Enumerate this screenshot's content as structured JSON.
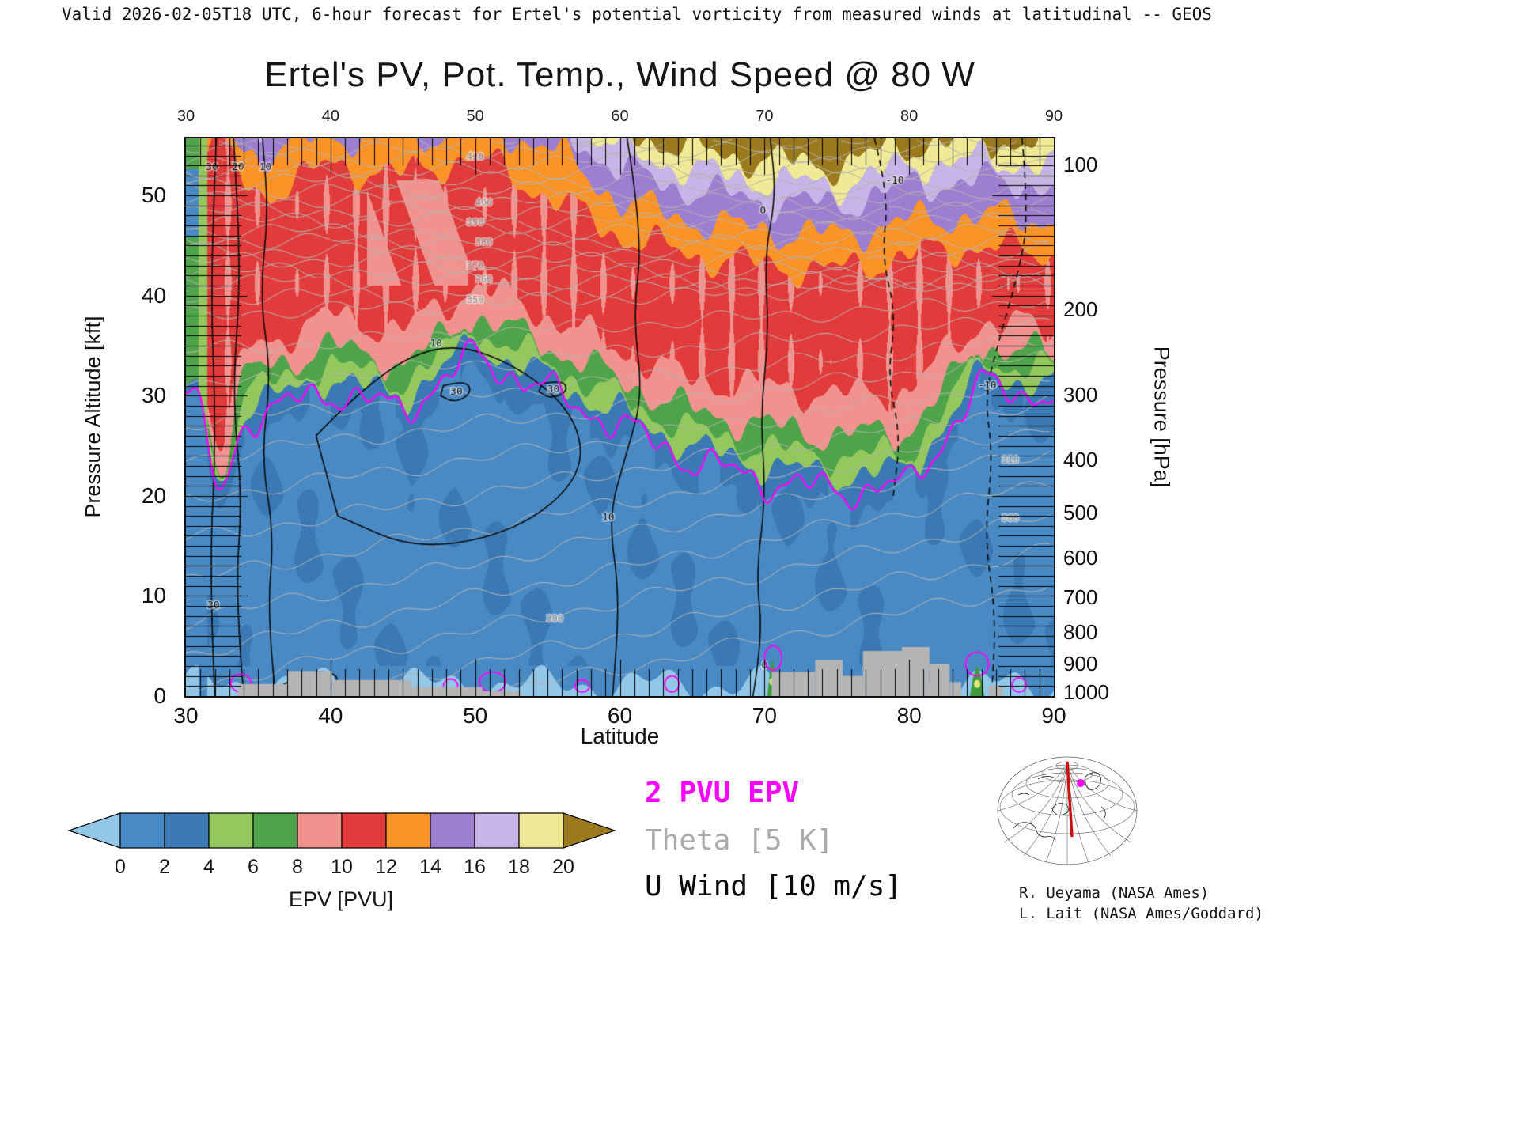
{
  "header": {
    "valid_line": "Valid 2026-02-05T18 UTC, 6-hour forecast for Ertel's potential vorticity from measured winds at latitudinal -- GEOS"
  },
  "title": "Ertel's PV, Pot. Temp., Wind Speed @ 80 W",
  "axes": {
    "x": {
      "label": "Latitude",
      "min": 30,
      "max": 90,
      "ticks": [
        30,
        40,
        50,
        60,
        70,
        80,
        90
      ]
    },
    "y_left": {
      "label": "Pressure Altitude [kft]",
      "min": 0,
      "max": 55.7,
      "ticks": [
        0,
        10,
        20,
        30,
        40,
        50
      ]
    },
    "y_right": {
      "label": "Pressure [hPa]",
      "ticks": [
        100,
        200,
        300,
        400,
        500,
        600,
        700,
        800,
        900,
        1000
      ],
      "tick_altitudes_kft": [
        53.1,
        38.6,
        30.1,
        23.6,
        18.3,
        13.8,
        9.9,
        6.4,
        3.2,
        0.4
      ]
    }
  },
  "colorbar": {
    "caption": "EPV [PVU]",
    "tick_labels": [
      0,
      2,
      4,
      6,
      8,
      10,
      12,
      14,
      16,
      18,
      20
    ],
    "under_color": "#93C7E8",
    "segment_colors": [
      "#4A8AC4",
      "#3B79B5",
      "#94C75E",
      "#4FA34A",
      "#F0938F",
      "#E23B3B",
      "#FB9327",
      "#9C7FD0",
      "#C6B5E6",
      "#F0EA96"
    ],
    "over_color": "#9A7A1C"
  },
  "legend": {
    "items": [
      {
        "label": "2 PVU EPV",
        "color": "#FF00FF",
        "bold": true
      },
      {
        "label": "Theta [5 K]",
        "color": "#ABABAB",
        "bold": false
      },
      {
        "label": "U Wind [10 m/s]",
        "color": "#0A0A0A",
        "bold": false
      }
    ]
  },
  "credits": {
    "line1": "R. Ueyama (NASA Ames)",
    "line2": "L. Lait (NASA Ames/Goddard)"
  },
  "chart_data": {
    "type": "heatmap",
    "description": "Latitude-height cross section at 80 W of Ertel's potential vorticity (filled contours, PVU) with potential temperature (gray, 5 K interval), zonal wind (black, 10 m/s interval, negative dashed) and the 2 PVU dynamical tropopause (magenta). GEOS 6-hour forecast valid 2026-02-05T18 UTC.",
    "x": {
      "name": "Latitude",
      "units": "deg N",
      "min": 30,
      "max": 90
    },
    "y": {
      "name": "Pressure Altitude",
      "units": "kft",
      "min": 0,
      "max": 55.7
    },
    "fill_levels_pvu": [
      0,
      2,
      4,
      6,
      8,
      10,
      12,
      14,
      16,
      18,
      20
    ],
    "grid_lats": [
      30,
      35,
      40,
      45,
      50,
      55,
      60,
      65,
      70,
      75,
      80,
      85,
      90
    ],
    "pv_level_altitudes_kft": {
      "2": [
        30.5,
        28.0,
        30.5,
        28.5,
        34.0,
        30.5,
        27.0,
        23.5,
        21.5,
        20.5,
        21.0,
        31.0,
        30.0
      ],
      "8": [
        35.0,
        32.5,
        35.0,
        33.0,
        38.0,
        35.0,
        31.5,
        28.5,
        27.0,
        26.0,
        26.5,
        35.0,
        34.0
      ],
      "10": [
        37.5,
        35.0,
        38.0,
        36.5,
        41.0,
        38.0,
        34.5,
        31.5,
        31.0,
        30.0,
        30.5,
        37.5,
        36.5
      ],
      "12": [
        55.0,
        50.0,
        53.0,
        52.0,
        54.0,
        50.0,
        46.0,
        44.0,
        43.0,
        42.5,
        44.0,
        45.0,
        44.0
      ],
      "14": [
        58.0,
        54.0,
        56.0,
        55.5,
        57.0,
        55.0,
        49.5,
        47.5,
        46.5,
        46.0,
        47.5,
        48.0,
        47.5
      ],
      "16": [
        61.0,
        57.0,
        59.0,
        58.5,
        60.0,
        57.5,
        52.5,
        50.5,
        49.5,
        49.0,
        51.0,
        51.5,
        51.0
      ],
      "18": [
        63.0,
        59.0,
        61.0,
        60.5,
        62.0,
        59.0,
        54.5,
        52.5,
        51.5,
        51.0,
        53.0,
        53.5,
        53.0
      ],
      "20": [
        65.0,
        61.0,
        63.0,
        62.5,
        64.0,
        61.0,
        56.5,
        54.5,
        53.5,
        53.0,
        55.0,
        55.5,
        55.0
      ]
    },
    "tropopause_fold": {
      "center_lat": 32.4,
      "width_lat": 0.8,
      "depth_kft": 9.0
    },
    "theta": {
      "interval_K": 5,
      "min_K": 290,
      "max_K": 430,
      "profile_z_of_theta": [
        [
          290,
          1.33
        ],
        [
          330,
          28.0
        ],
        [
          350,
          39.5
        ],
        [
          432,
          55.9
        ]
      ],
      "tilt": {
        "max_kft": 10,
        "zero_above_theta": 360,
        "ref_lat": 55,
        "span_lat": 35
      },
      "labels": [
        {
          "value": 350,
          "lat": 50.0
        },
        {
          "value": 360,
          "lat": 50.6
        },
        {
          "value": 370,
          "lat": 50.0
        },
        {
          "value": 380,
          "lat": 50.6
        },
        {
          "value": 390,
          "lat": 50.0
        },
        {
          "value": 400,
          "lat": 50.6
        },
        {
          "value": 420,
          "lat": 50.0
        },
        {
          "value": 300,
          "lat": 55.5
        },
        {
          "value": 300,
          "lat": 87.0
        },
        {
          "value": 310,
          "lat": 87.0
        }
      ]
    },
    "wind_contours": [
      {
        "value": 10,
        "style": "solid",
        "closed": false,
        "points": [
          [
            36.2,
            0
          ],
          [
            35.6,
            8
          ],
          [
            36.1,
            16
          ],
          [
            35.2,
            24
          ],
          [
            35.9,
            32
          ],
          [
            35.1,
            40
          ],
          [
            35.7,
            48
          ],
          [
            35.3,
            55.7
          ]
        ],
        "labels": [
          [
            35.5,
            52.8
          ]
        ]
      },
      {
        "value": 20,
        "style": "solid",
        "closed": false,
        "points": [
          [
            34.0,
            0
          ],
          [
            33.4,
            10
          ],
          [
            33.9,
            20
          ],
          [
            33.2,
            30
          ],
          [
            33.8,
            42
          ],
          [
            33.3,
            55.7
          ]
        ],
        "labels": [
          [
            33.6,
            52.8
          ]
        ]
      },
      {
        "value": 30,
        "style": "solid",
        "closed": false,
        "points": [
          [
            32.0,
            0
          ],
          [
            31.6,
            12
          ],
          [
            32.1,
            26
          ],
          [
            31.7,
            40
          ],
          [
            32.1,
            55.7
          ]
        ],
        "labels": [
          [
            31.8,
            52.8
          ],
          [
            31.9,
            9.0
          ]
        ]
      },
      {
        "value": 10,
        "style": "solid",
        "closed": true,
        "points": [
          [
            39,
            26
          ],
          [
            43,
            32
          ],
          [
            48,
            35.5
          ],
          [
            53,
            33
          ],
          [
            57,
            28
          ],
          [
            57.5,
            22
          ],
          [
            53,
            16.5
          ],
          [
            46,
            14.5
          ],
          [
            40.5,
            18
          ]
        ],
        "labels": [
          [
            47.3,
            35.2
          ]
        ]
      },
      {
        "value": 30,
        "style": "solid",
        "closed": true,
        "points": [
          [
            47.8,
            31
          ],
          [
            49.3,
            31.6
          ],
          [
            49.8,
            30.3
          ],
          [
            48.6,
            29.3
          ],
          [
            47.6,
            30.0
          ]
        ],
        "labels": [
          [
            48.7,
            30.4
          ]
        ]
      },
      {
        "value": 30,
        "style": "solid",
        "closed": true,
        "points": [
          [
            54.6,
            31.2
          ],
          [
            56.1,
            31.6
          ],
          [
            56.4,
            30.4
          ],
          [
            55.2,
            29.7
          ],
          [
            54.4,
            30.4
          ]
        ],
        "labels": [
          [
            55.4,
            30.6
          ]
        ]
      },
      {
        "value": 10,
        "style": "solid",
        "closed": false,
        "points": [
          [
            60.5,
            55.7
          ],
          [
            61.6,
            46
          ],
          [
            60.9,
            38
          ],
          [
            61.6,
            30
          ],
          [
            60.4,
            24
          ],
          [
            59.2,
            17.8
          ],
          [
            60.0,
            10
          ],
          [
            59.5,
            0
          ]
        ],
        "labels": [
          [
            59.2,
            17.8
          ]
        ]
      },
      {
        "value": 0,
        "style": "solid",
        "closed": false,
        "points": [
          [
            69.2,
            0
          ],
          [
            69.9,
            6
          ],
          [
            69.4,
            12
          ],
          [
            70.1,
            20
          ],
          [
            69.7,
            28
          ],
          [
            70.3,
            36
          ],
          [
            70.0,
            44
          ],
          [
            70.8,
            50
          ],
          [
            70.4,
            55.7
          ]
        ],
        "labels": [
          [
            70.0,
            3.0
          ],
          [
            69.9,
            48.5
          ]
        ]
      },
      {
        "value": "",
        "style": "solid",
        "closed": true,
        "points": [
          [
            36.8,
            1.2
          ],
          [
            38.5,
            2.6
          ],
          [
            40.6,
            2.2
          ],
          [
            40.2,
            0.8
          ],
          [
            38.0,
            0.3
          ]
        ],
        "labels": []
      },
      {
        "value": -10,
        "style": "dashed",
        "closed": false,
        "points": [
          [
            77.6,
            55.7
          ],
          [
            78.6,
            50
          ],
          [
            78.1,
            44
          ],
          [
            79.1,
            38
          ],
          [
            78.5,
            32
          ],
          [
            79.4,
            26
          ],
          [
            78.9,
            20
          ]
        ],
        "labels": [
          [
            79.0,
            51.5
          ]
        ]
      },
      {
        "value": -10,
        "style": "dashed",
        "closed": false,
        "points": [
          [
            87.8,
            55.7
          ],
          [
            88.3,
            48
          ],
          [
            87.5,
            42
          ],
          [
            86.3,
            36
          ],
          [
            85.2,
            30
          ],
          [
            85.8,
            24
          ],
          [
            85.2,
            16
          ],
          [
            86.0,
            8
          ],
          [
            85.7,
            0
          ]
        ],
        "labels": [
          [
            85.4,
            31.0
          ]
        ]
      }
    ],
    "tropopause_2pvu_color": "#FF00FF",
    "surface_pv_features": {
      "magenta_maxima": [
        {
          "lat": 33.8,
          "z": 1.3,
          "rlat": 0.7,
          "rz": 0.9
        },
        {
          "lat": 48.3,
          "z": 1.0,
          "rlat": 0.5,
          "rz": 0.7
        },
        {
          "lat": 51.2,
          "z": 1.4,
          "rlat": 0.9,
          "rz": 1.0
        },
        {
          "lat": 57.4,
          "z": 1.0,
          "rlat": 0.5,
          "rz": 0.6
        },
        {
          "lat": 63.6,
          "z": 1.2,
          "rlat": 0.5,
          "rz": 0.8
        },
        {
          "lat": 70.6,
          "z": 3.8,
          "rlat": 0.6,
          "rz": 1.2
        },
        {
          "lat": 75.2,
          "z": 0.8,
          "rlat": 0.4,
          "rz": 0.6
        },
        {
          "lat": 84.7,
          "z": 3.2,
          "rlat": 0.8,
          "rz": 1.2
        },
        {
          "lat": 87.6,
          "z": 1.1,
          "rlat": 0.5,
          "rz": 0.7
        }
      ],
      "green_spikes": [
        {
          "lat": 70.55,
          "half_width": 0.35,
          "top_kft": 3.6
        },
        {
          "lat": 84.7,
          "half_width": 0.5,
          "top_kft": 3.0
        }
      ]
    },
    "terrain_blocks_lat0_lat1_topkft": [
      [
        33.6,
        37.0,
        1.2
      ],
      [
        37.0,
        40.1,
        2.5
      ],
      [
        40.1,
        45.6,
        1.6
      ],
      [
        45.6,
        50.5,
        0.9
      ],
      [
        50.5,
        53.2,
        0.5
      ],
      [
        70.5,
        73.5,
        2.4
      ],
      [
        73.5,
        75.4,
        3.6
      ],
      [
        75.4,
        76.8,
        2.0
      ],
      [
        76.8,
        79.5,
        4.5
      ],
      [
        79.5,
        81.4,
        4.9
      ],
      [
        81.4,
        82.8,
        3.2
      ],
      [
        82.8,
        83.6,
        1.4
      ],
      [
        85.5,
        86.5,
        1.0
      ]
    ],
    "terrain_color": "#B4B4B4"
  }
}
